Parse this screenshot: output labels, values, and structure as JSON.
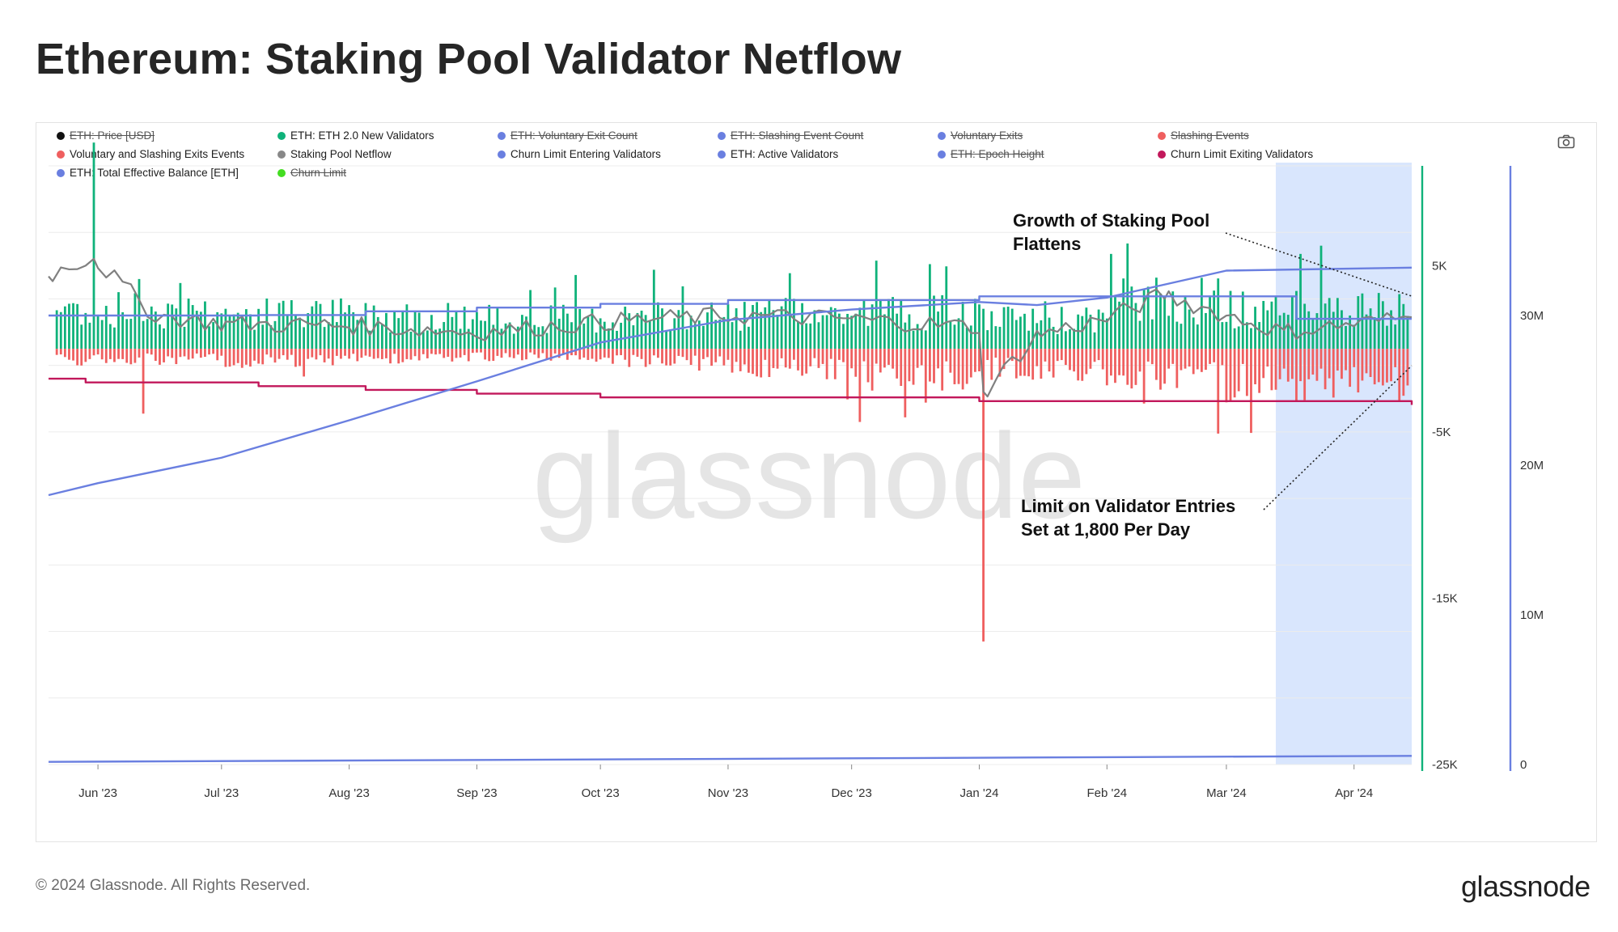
{
  "title": "Ethereum: Staking Pool Validator Netflow",
  "legend": [
    {
      "label": "ETH: Price [USD]",
      "color": "#111111",
      "active": false
    },
    {
      "label": "ETH: ETH 2.0 New Validators",
      "color": "#0fb27a",
      "active": true
    },
    {
      "label": "ETH: Voluntary Exit Count",
      "color": "#6a7fe0",
      "active": false
    },
    {
      "label": "ETH: Slashing Event Count",
      "color": "#6a7fe0",
      "active": false
    },
    {
      "label": "Voluntary Exits",
      "color": "#6a7fe0",
      "active": false
    },
    {
      "label": "Slashing Events",
      "color": "#ef5f5f",
      "active": false
    },
    {
      "label": "Voluntary and Slashing Exits Events",
      "color": "#ef5f5f",
      "active": true
    },
    {
      "label": "Staking Pool Netflow",
      "color": "#888888",
      "active": true
    },
    {
      "label": "Churn Limit Entering Validators",
      "color": "#6a7fe0",
      "active": true
    },
    {
      "label": "ETH: Active Validators",
      "color": "#6a7fe0",
      "active": true
    },
    {
      "label": "ETH: Epoch Height",
      "color": "#6a7fe0",
      "active": false
    },
    {
      "label": "Churn Limit Exiting Validators",
      "color": "#c2185b",
      "active": true
    },
    {
      "label": "ETH: Total Effective Balance [ETH]",
      "color": "#6a7fe0",
      "active": true
    },
    {
      "label": "Churn Limit",
      "color": "#44dd22",
      "active": false
    }
  ],
  "chart_data": {
    "type": "bar",
    "x_axis": {
      "ticks": [
        "Jun '23",
        "Jul '23",
        "Aug '23",
        "Sep '23",
        "Oct '23",
        "Nov '23",
        "Dec '23",
        "Jan '24",
        "Feb '24",
        "Mar '24",
        "Apr '24"
      ],
      "range": [
        "2023-05-20",
        "2024-04-15"
      ]
    },
    "y_left": {
      "ticks": [
        "5K",
        "-5K",
        "-15K",
        "-25K"
      ],
      "tick_values": [
        5000,
        -5000,
        -15000,
        -25000
      ],
      "ylim": [
        -25000,
        11000
      ]
    },
    "y_right": {
      "ticks": [
        "30M",
        "20M",
        "10M",
        "0"
      ],
      "tick_values": [
        30000000,
        20000000,
        10000000,
        0
      ],
      "ylim": [
        0,
        40000000
      ]
    },
    "series": [
      {
        "name": "ETH: ETH 2.0 New Validators",
        "kind": "bar",
        "axis": "left",
        "monthly_typical": [
          2600,
          2300,
          2200,
          2000,
          2100,
          2300,
          2400,
          1900,
          3200,
          2600,
          2500
        ],
        "spikes": [
          {
            "date": "2023-05-31",
            "value": 12400
          },
          {
            "date": "2023-12-07",
            "value": 5300
          },
          {
            "date": "2024-03-24",
            "value": 6200
          }
        ]
      },
      {
        "name": "Voluntary and Slashing Exits Events",
        "kind": "bar",
        "axis": "left",
        "monthly_typical": [
          -800,
          -900,
          -700,
          -600,
          -900,
          -1500,
          -2000,
          -1500,
          -2000,
          -2600,
          -2400
        ],
        "spikes": [
          {
            "date": "2023-06-12",
            "value": -3900
          },
          {
            "date": "2023-12-03",
            "value": -4400
          },
          {
            "date": "2024-01-02",
            "value": -17600
          },
          {
            "date": "2024-02-28",
            "value": -5100
          }
        ]
      },
      {
        "name": "Staking Pool Netflow",
        "kind": "line",
        "axis": "left",
        "dates": [
          "2023-05-20",
          "2023-05-31",
          "2023-06-15",
          "2023-07-01",
          "2023-08-01",
          "2023-09-01",
          "2023-10-01",
          "2023-11-01",
          "2023-12-01",
          "2024-01-01",
          "2024-01-02",
          "2024-01-15",
          "2024-02-01",
          "2024-02-15",
          "2024-03-01",
          "2024-03-15",
          "2024-04-15"
        ],
        "values": [
          4300,
          5600,
          2000,
          1500,
          1400,
          1000,
          1600,
          2000,
          1800,
          1300,
          -2900,
          800,
          1800,
          3300,
          2000,
          1000,
          1900
        ]
      },
      {
        "name": "Churn Limit Entering Validators",
        "kind": "step",
        "axis": "left",
        "dates": [
          "2023-05-20",
          "2023-07-10",
          "2023-08-05",
          "2023-09-01",
          "2023-10-01",
          "2023-11-01",
          "2024-01-01",
          "2024-02-10",
          "2024-03-18",
          "2024-04-15"
        ],
        "values": [
          2000,
          2025,
          2250,
          2475,
          2700,
          2925,
          3150,
          3150,
          1800,
          1800
        ]
      },
      {
        "name": "Churn Limit Exiting Validators",
        "kind": "step",
        "axis": "left",
        "dates": [
          "2023-05-20",
          "2023-05-29",
          "2023-07-10",
          "2023-08-05",
          "2023-09-01",
          "2023-10-01",
          "2023-11-01",
          "2024-01-01",
          "2024-02-01",
          "2024-04-12",
          "2024-04-15"
        ],
        "values": [
          -1800,
          -2025,
          -2250,
          -2475,
          -2700,
          -2925,
          -2925,
          -3150,
          -3150,
          -3150,
          -3375
        ]
      },
      {
        "name": "ETH: Active Validators",
        "kind": "line",
        "axis": "right",
        "dates": [
          "2023-05-20",
          "2023-06-01",
          "2023-07-01",
          "2023-08-01",
          "2023-09-01",
          "2023-10-01",
          "2023-11-01",
          "2023-12-01",
          "2024-01-01",
          "2024-01-15",
          "2024-02-01",
          "2024-03-01",
          "2024-04-15"
        ],
        "values": [
          18000000,
          18800000,
          20500000,
          23000000,
          25600000,
          28200000,
          29700000,
          30400000,
          30900000,
          30700000,
          31200000,
          33000000,
          33200000
        ]
      },
      {
        "name": "ETH: Total Effective Balance [ETH]",
        "kind": "line",
        "axis": "right",
        "dates": [
          "2023-05-20",
          "2024-04-15"
        ],
        "values": [
          180000,
          580000
        ]
      }
    ],
    "annotations": [
      {
        "text": "Growth of Staking Pool\nFlattens",
        "lines": [
          "Growth of Staking Pool",
          "Flattens"
        ]
      },
      {
        "text": "Limit on Validator Entries\nSet at 1,800 Per Day",
        "lines": [
          "Limit on Validator Entries",
          "Set at 1,800 Per Day"
        ]
      }
    ],
    "highlight_range": [
      "2024-03-13",
      "2024-04-15"
    ],
    "watermark": "glassnode"
  },
  "footer": {
    "copyright": "© 2024 Glassnode. All Rights Reserved.",
    "brand": "glassnode"
  },
  "colors": {
    "green": "#0fb27a",
    "red": "#ef5f5f",
    "blue": "#6a7fe0",
    "crimson": "#c2185b",
    "gray": "#808080",
    "highlight": "#d9e6fd"
  }
}
